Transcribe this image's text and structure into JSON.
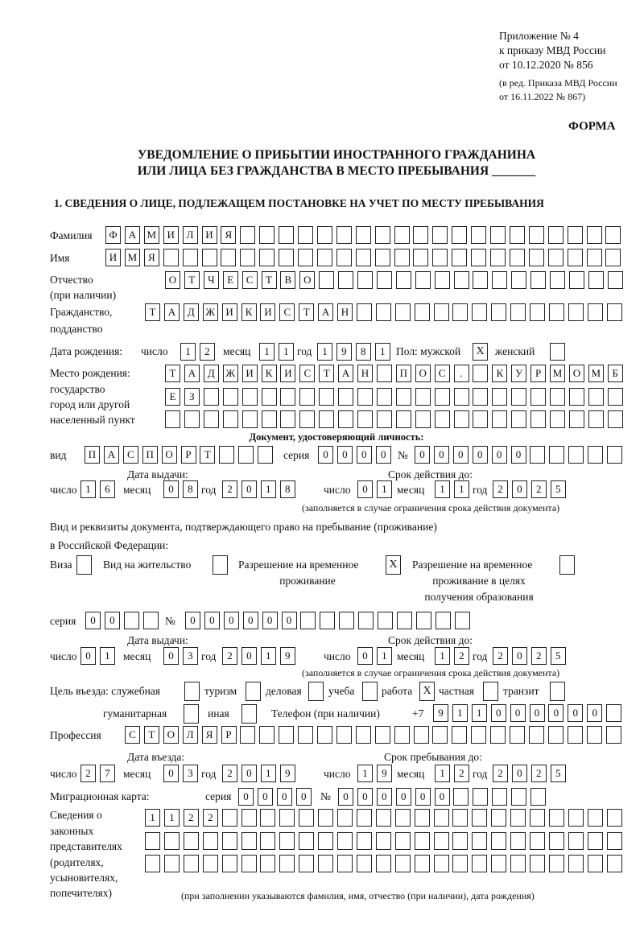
{
  "header": {
    "line1": "Приложение № 4",
    "line2": "к приказу МВД России",
    "line3": "от 10.12.2020 № 856",
    "line4": "(в ред. Приказа МВД России",
    "line5": "от 16.11.2022 № 867)",
    "forma": "ФОРМА",
    "title1": "УВЕДОМЛЕНИЕ О ПРИБЫТИИ ИНОСТРАННОГО ГРАЖДАНИНА",
    "title2": "ИЛИ ЛИЦА БЕЗ ГРАЖДАНСТВА В МЕСТО ПРЕБЫВАНИЯ _______",
    "section1": "1. СВЕДЕНИЯ О ЛИЦЕ, ПОДЛЕЖАЩЕМ ПОСТАНОВКЕ НА УЧЕТ ПО МЕСТУ ПРЕБЫВАНИЯ"
  },
  "labels": {
    "surname": "Фамилия",
    "name": "Имя",
    "patronymic": "Отчество",
    "patronymic2": "(при наличии)",
    "citizenship": "Гражданство,",
    "citizenship2": "подданство",
    "birth_date": "Дата рождения:",
    "day": "число",
    "month": "месяц",
    "year": "год",
    "sex": "Пол: мужской",
    "female": "женский",
    "birth_place1": "Место рождения:",
    "birth_place2": "государство",
    "birth_place3": "город или другой",
    "birth_place4": "населенный пункт",
    "id_doc": "Документ, удостоверяющий личность:",
    "kind": "вид",
    "series": "серия",
    "number": "№",
    "issue_date": "Дата выдачи:",
    "valid_until": "Срок действия до:",
    "valid_note": "(заполняется в случае ограничения срока действия документа)",
    "right_doc1": "Вид и реквизиты документа, подтверждающего право на пребывание (проживание)",
    "right_doc2": "в Российской Федерации:",
    "visa": "Виза",
    "residence": "Вид на жительство",
    "trp1": "Разрешение на временное",
    "trp2": "проживание",
    "trp_edu1": "Разрешение на временное",
    "trp_edu2": "проживание в целях",
    "trp_edu3": "получения образования",
    "purpose": "Цель въезда: служебная",
    "tourism": "туризм",
    "business": "деловая",
    "study": "учеба",
    "work": "работа",
    "private": "частная",
    "transit": "транзит",
    "humanitarian": "гуманитарная",
    "other": "иная",
    "phone": "Телефон (при наличии)",
    "phone_prefix": "+7",
    "profession": "Профессия",
    "entry_date": "Дата въезда:",
    "stay_until": "Срок пребывания до:",
    "migration_card": "Миграционная карта:",
    "reps1": "Сведения о",
    "reps2": "законных",
    "reps3": "представителях",
    "reps4": "(родителях,",
    "reps5": "усыновителях,",
    "reps6": "попечителях)",
    "reps_note": "(при заполнении указываются фамилия, имя, отчество (при наличии), дата рождения)"
  },
  "values": {
    "surname": "ФАМИЛИЯ",
    "name": "ИМЯ",
    "patronymic": "ОТЧЕСТВО",
    "citizenship": "ТАДЖИКИСТАН",
    "birth_day": "12",
    "birth_month": "11",
    "birth_year": "1981",
    "sex_male": "X",
    "sex_female": "",
    "birth_place_1": "ТАДЖИКИСТАН ПОС. КУРМОМБ",
    "birth_place_2": "ЕЗ",
    "birth_place_3": "",
    "id_kind": "ПАСПОРТ",
    "id_series": "0000",
    "id_number": "000000",
    "id_issue_day": "16",
    "id_issue_month": "08",
    "id_issue_year": "2018",
    "id_valid_day": "01",
    "id_valid_month": "11",
    "id_valid_year": "2025",
    "visa": "",
    "residence": "",
    "trp": "X",
    "trp_edu": "",
    "rd_series": "00",
    "rd_number": "000000",
    "rd_issue_day": "01",
    "rd_issue_month": "03",
    "rd_issue_year": "2019",
    "rd_valid_day": "01",
    "rd_valid_month": "12",
    "rd_valid_year": "2025",
    "purpose_official": "",
    "purpose_tourism": "",
    "purpose_business": "",
    "purpose_study": "",
    "purpose_work": "X",
    "purpose_private": "",
    "purpose_transit": "",
    "purpose_humanitarian": "",
    "purpose_other": "",
    "phone": "911000000",
    "profession": "СТОЛЯР",
    "entry_day": "27",
    "entry_month": "03",
    "entry_year": "2019",
    "stay_day": "19",
    "stay_month": "12",
    "stay_year": "2025",
    "mc_series": "0000",
    "mc_number": "000000",
    "reps_1": "1122",
    "reps_2": "",
    "reps_3": ""
  }
}
